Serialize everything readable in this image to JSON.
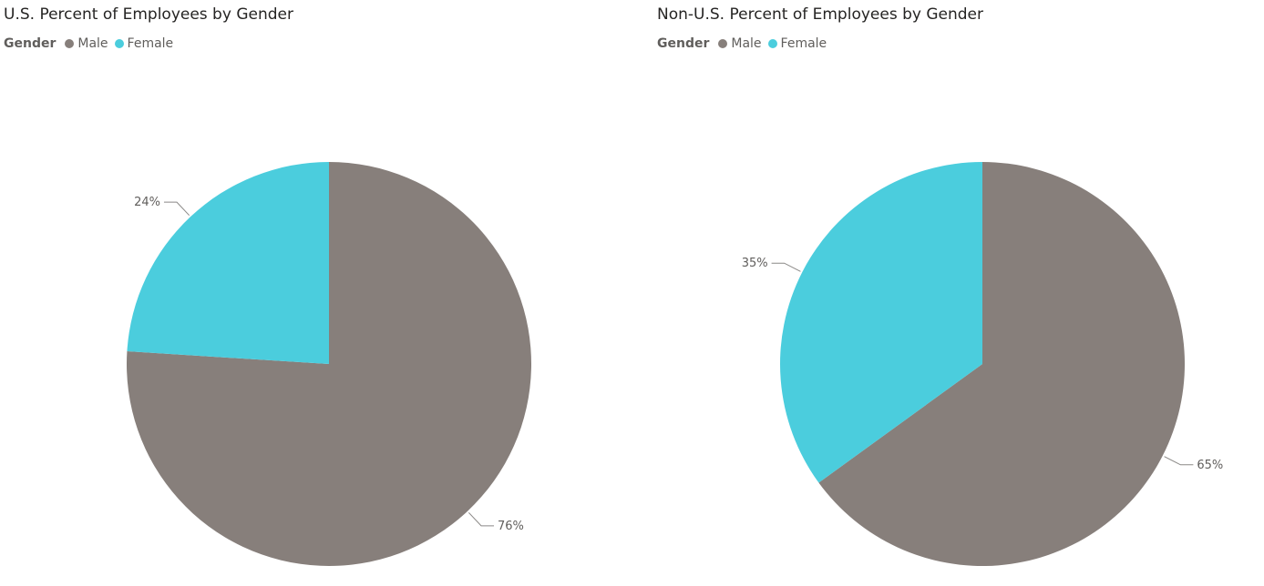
{
  "chart_data": [
    {
      "type": "pie",
      "title": "U.S. Percent of Employees by Gender",
      "legend_title": "Gender",
      "legend_position": "top-left",
      "categories": [
        "Male",
        "Female"
      ],
      "values": [
        76,
        24
      ],
      "data_labels": [
        "76%",
        "24%"
      ],
      "colors": [
        "#877f7b",
        "#4bcddd"
      ]
    },
    {
      "type": "pie",
      "title": "Non-U.S. Percent of Employees by Gender",
      "legend_title": "Gender",
      "legend_position": "top-left",
      "categories": [
        "Male",
        "Female"
      ],
      "values": [
        65,
        35
      ],
      "data_labels": [
        "65%",
        "35%"
      ],
      "colors": [
        "#877f7b",
        "#4bcddd"
      ]
    }
  ]
}
